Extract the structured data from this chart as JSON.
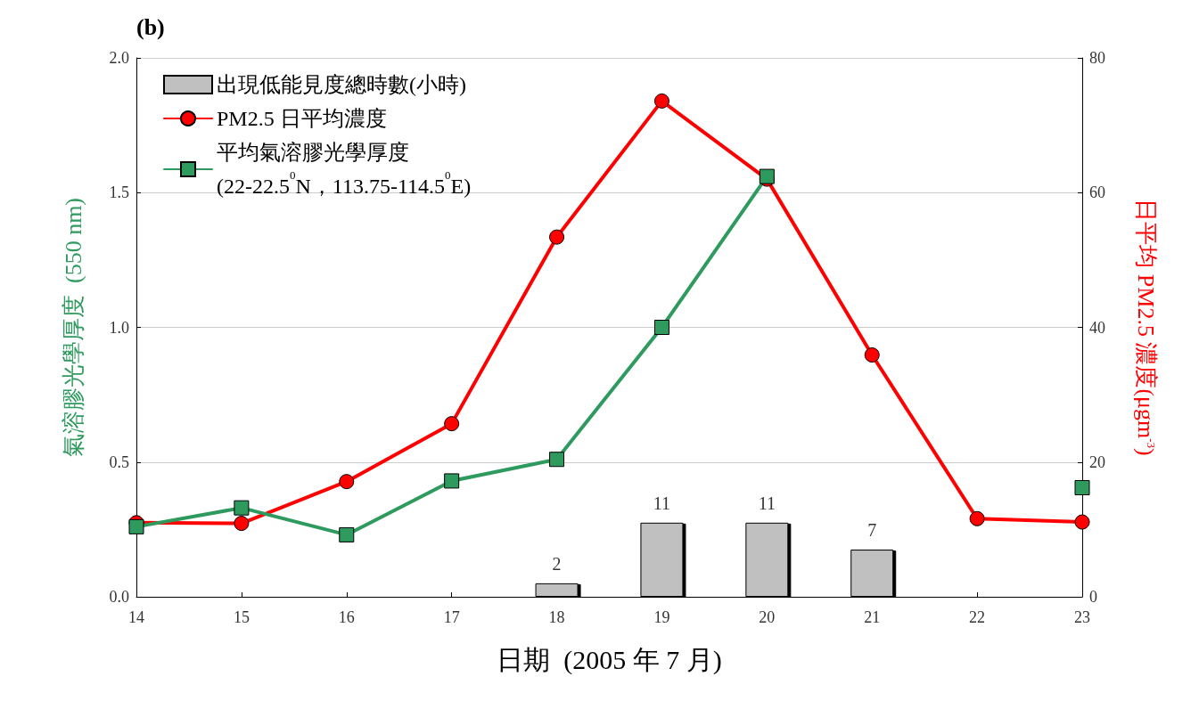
{
  "chart_data": {
    "type": "line",
    "title": "(b)",
    "xlabel": "日期  (2005 年 7 月)",
    "ylabel": "氣溶膠光學厚度  (550 nm)",
    "y2label": "日平均 PM2.5 濃度(μgm$^{-3}$)",
    "x": [
      14,
      15,
      16,
      17,
      18,
      19,
      20,
      21,
      22,
      23
    ],
    "xlim": [
      14,
      23
    ],
    "xticks": [
      14,
      15,
      16,
      17,
      18,
      19,
      20,
      21,
      22,
      23
    ],
    "ylim": [
      0,
      2
    ],
    "yticks": [
      {
        "value": 0,
        "label": "0.0"
      },
      0.5,
      {
        "value": 1,
        "label": "1.0"
      },
      1.5,
      {
        "value": 2,
        "label": "2.0"
      }
    ],
    "y2lim": [
      0,
      80
    ],
    "y2ticks": [
      0,
      20,
      40,
      60,
      80
    ],
    "grid": "y",
    "legend": "top left",
    "series": [
      {
        "type": "bar",
        "name": "出現低能見度總時數(小時)",
        "color": "#c0c0c0",
        "axis": "y2",
        "x": [
          18,
          19,
          20,
          21
        ],
        "values": [
          2,
          11,
          11,
          7
        ],
        "data_labels": true
      },
      {
        "name": "PM2.5 日平均濃度",
        "color": "#ff0000",
        "axis": "y2",
        "marker": "circle",
        "values": [
          11,
          10.9,
          17.1,
          25.7,
          53.4,
          73.6,
          62,
          35.9,
          11.6,
          11.1
        ]
      },
      {
        "name": "平均氣溶膠光學厚度\n(22-22.5$^{0}$N，113.75-114.5$^{0}$E)",
        "color": "#2e9a5e",
        "axis": "y",
        "marker": "square",
        "values": [
          0.26,
          0.33,
          0.23,
          0.43,
          0.51,
          1.0,
          1.56,
          null,
          null,
          0.405
        ]
      }
    ]
  }
}
